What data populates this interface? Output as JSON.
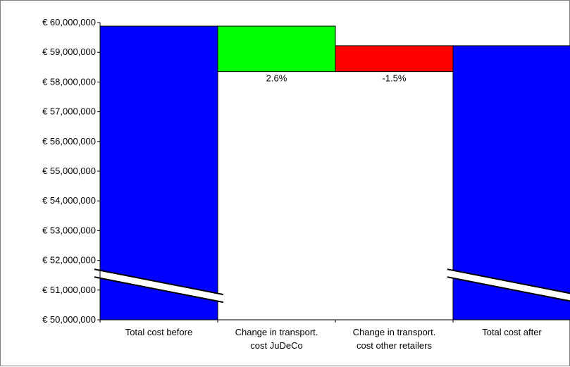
{
  "chart_data": {
    "type": "bar",
    "subtype": "waterfall",
    "categories": [
      [
        "Total cost before"
      ],
      [
        "Change in transport.",
        "cost JuDeCo"
      ],
      [
        "Change in transport.",
        "cost other retailers"
      ],
      [
        "Total cost after"
      ]
    ],
    "bars": [
      {
        "category": "Total cost before",
        "base": 50000000,
        "top": 59880000,
        "color": "#0000ff",
        "label": ""
      },
      {
        "category": "Change in transport. cost JuDeCo",
        "base": 58350000,
        "top": 59880000,
        "color": "#00ff00",
        "label": "2.6%"
      },
      {
        "category": "Change in transport. cost other retailers",
        "base": 58350000,
        "top": 59220000,
        "color": "#ff0000",
        "label": "-1.5%"
      },
      {
        "category": "Total cost after",
        "base": 50000000,
        "top": 59220000,
        "color": "#0000ff",
        "label": ""
      }
    ],
    "ylim": [
      50000000,
      60000000
    ],
    "yticks": [
      "€ 50,000,000",
      "€ 51,000,000",
      "€ 52,000,000",
      "€ 53,000,000",
      "€ 54,000,000",
      "€ 55,000,000",
      "€ 56,000,000",
      "€ 57,000,000",
      "€ 58,000,000",
      "€ 59,000,000",
      "€ 60,000,000"
    ],
    "ytick_values": [
      50000000,
      51000000,
      52000000,
      53000000,
      54000000,
      55000000,
      56000000,
      57000000,
      58000000,
      59000000,
      60000000
    ],
    "axis_break": true,
    "grid": false,
    "title": "",
    "xlabel": "",
    "ylabel": ""
  }
}
